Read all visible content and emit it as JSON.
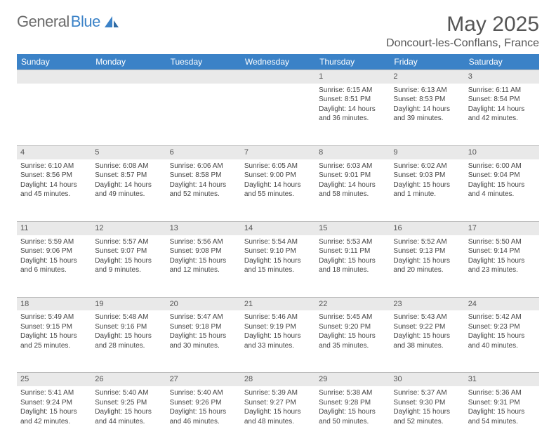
{
  "logo": {
    "word1": "General",
    "word2": "Blue"
  },
  "colors": {
    "header_bg": "#3b82c7",
    "header_text": "#ffffff",
    "daynum_bg": "#e9e9e9",
    "daynum_border": "#bcbcbc",
    "body_text": "#444444",
    "title_text": "#555555",
    "logo_gray": "#6b6b6b",
    "logo_blue": "#3b82c7",
    "page_bg": "#ffffff"
  },
  "typography": {
    "month_title_fontsize": 30,
    "location_fontsize": 16,
    "weekday_fontsize": 12,
    "daynum_fontsize": 11,
    "cell_fontsize": 10
  },
  "title": "May 2025",
  "location": "Doncourt-les-Conflans, France",
  "weekdays": [
    "Sunday",
    "Monday",
    "Tuesday",
    "Wednesday",
    "Thursday",
    "Friday",
    "Saturday"
  ],
  "grid": {
    "cols": 7,
    "rows": 5
  },
  "weeks": [
    [
      null,
      null,
      null,
      null,
      {
        "day": "1",
        "sunrise": "Sunrise: 6:15 AM",
        "sunset": "Sunset: 8:51 PM",
        "daylight": "Daylight: 14 hours and 36 minutes."
      },
      {
        "day": "2",
        "sunrise": "Sunrise: 6:13 AM",
        "sunset": "Sunset: 8:53 PM",
        "daylight": "Daylight: 14 hours and 39 minutes."
      },
      {
        "day": "3",
        "sunrise": "Sunrise: 6:11 AM",
        "sunset": "Sunset: 8:54 PM",
        "daylight": "Daylight: 14 hours and 42 minutes."
      }
    ],
    [
      {
        "day": "4",
        "sunrise": "Sunrise: 6:10 AM",
        "sunset": "Sunset: 8:56 PM",
        "daylight": "Daylight: 14 hours and 45 minutes."
      },
      {
        "day": "5",
        "sunrise": "Sunrise: 6:08 AM",
        "sunset": "Sunset: 8:57 PM",
        "daylight": "Daylight: 14 hours and 49 minutes."
      },
      {
        "day": "6",
        "sunrise": "Sunrise: 6:06 AM",
        "sunset": "Sunset: 8:58 PM",
        "daylight": "Daylight: 14 hours and 52 minutes."
      },
      {
        "day": "7",
        "sunrise": "Sunrise: 6:05 AM",
        "sunset": "Sunset: 9:00 PM",
        "daylight": "Daylight: 14 hours and 55 minutes."
      },
      {
        "day": "8",
        "sunrise": "Sunrise: 6:03 AM",
        "sunset": "Sunset: 9:01 PM",
        "daylight": "Daylight: 14 hours and 58 minutes."
      },
      {
        "day": "9",
        "sunrise": "Sunrise: 6:02 AM",
        "sunset": "Sunset: 9:03 PM",
        "daylight": "Daylight: 15 hours and 1 minute."
      },
      {
        "day": "10",
        "sunrise": "Sunrise: 6:00 AM",
        "sunset": "Sunset: 9:04 PM",
        "daylight": "Daylight: 15 hours and 4 minutes."
      }
    ],
    [
      {
        "day": "11",
        "sunrise": "Sunrise: 5:59 AM",
        "sunset": "Sunset: 9:06 PM",
        "daylight": "Daylight: 15 hours and 6 minutes."
      },
      {
        "day": "12",
        "sunrise": "Sunrise: 5:57 AM",
        "sunset": "Sunset: 9:07 PM",
        "daylight": "Daylight: 15 hours and 9 minutes."
      },
      {
        "day": "13",
        "sunrise": "Sunrise: 5:56 AM",
        "sunset": "Sunset: 9:08 PM",
        "daylight": "Daylight: 15 hours and 12 minutes."
      },
      {
        "day": "14",
        "sunrise": "Sunrise: 5:54 AM",
        "sunset": "Sunset: 9:10 PM",
        "daylight": "Daylight: 15 hours and 15 minutes."
      },
      {
        "day": "15",
        "sunrise": "Sunrise: 5:53 AM",
        "sunset": "Sunset: 9:11 PM",
        "daylight": "Daylight: 15 hours and 18 minutes."
      },
      {
        "day": "16",
        "sunrise": "Sunrise: 5:52 AM",
        "sunset": "Sunset: 9:13 PM",
        "daylight": "Daylight: 15 hours and 20 minutes."
      },
      {
        "day": "17",
        "sunrise": "Sunrise: 5:50 AM",
        "sunset": "Sunset: 9:14 PM",
        "daylight": "Daylight: 15 hours and 23 minutes."
      }
    ],
    [
      {
        "day": "18",
        "sunrise": "Sunrise: 5:49 AM",
        "sunset": "Sunset: 9:15 PM",
        "daylight": "Daylight: 15 hours and 25 minutes."
      },
      {
        "day": "19",
        "sunrise": "Sunrise: 5:48 AM",
        "sunset": "Sunset: 9:16 PM",
        "daylight": "Daylight: 15 hours and 28 minutes."
      },
      {
        "day": "20",
        "sunrise": "Sunrise: 5:47 AM",
        "sunset": "Sunset: 9:18 PM",
        "daylight": "Daylight: 15 hours and 30 minutes."
      },
      {
        "day": "21",
        "sunrise": "Sunrise: 5:46 AM",
        "sunset": "Sunset: 9:19 PM",
        "daylight": "Daylight: 15 hours and 33 minutes."
      },
      {
        "day": "22",
        "sunrise": "Sunrise: 5:45 AM",
        "sunset": "Sunset: 9:20 PM",
        "daylight": "Daylight: 15 hours and 35 minutes."
      },
      {
        "day": "23",
        "sunrise": "Sunrise: 5:43 AM",
        "sunset": "Sunset: 9:22 PM",
        "daylight": "Daylight: 15 hours and 38 minutes."
      },
      {
        "day": "24",
        "sunrise": "Sunrise: 5:42 AM",
        "sunset": "Sunset: 9:23 PM",
        "daylight": "Daylight: 15 hours and 40 minutes."
      }
    ],
    [
      {
        "day": "25",
        "sunrise": "Sunrise: 5:41 AM",
        "sunset": "Sunset: 9:24 PM",
        "daylight": "Daylight: 15 hours and 42 minutes."
      },
      {
        "day": "26",
        "sunrise": "Sunrise: 5:40 AM",
        "sunset": "Sunset: 9:25 PM",
        "daylight": "Daylight: 15 hours and 44 minutes."
      },
      {
        "day": "27",
        "sunrise": "Sunrise: 5:40 AM",
        "sunset": "Sunset: 9:26 PM",
        "daylight": "Daylight: 15 hours and 46 minutes."
      },
      {
        "day": "28",
        "sunrise": "Sunrise: 5:39 AM",
        "sunset": "Sunset: 9:27 PM",
        "daylight": "Daylight: 15 hours and 48 minutes."
      },
      {
        "day": "29",
        "sunrise": "Sunrise: 5:38 AM",
        "sunset": "Sunset: 9:28 PM",
        "daylight": "Daylight: 15 hours and 50 minutes."
      },
      {
        "day": "30",
        "sunrise": "Sunrise: 5:37 AM",
        "sunset": "Sunset: 9:30 PM",
        "daylight": "Daylight: 15 hours and 52 minutes."
      },
      {
        "day": "31",
        "sunrise": "Sunrise: 5:36 AM",
        "sunset": "Sunset: 9:31 PM",
        "daylight": "Daylight: 15 hours and 54 minutes."
      }
    ]
  ]
}
